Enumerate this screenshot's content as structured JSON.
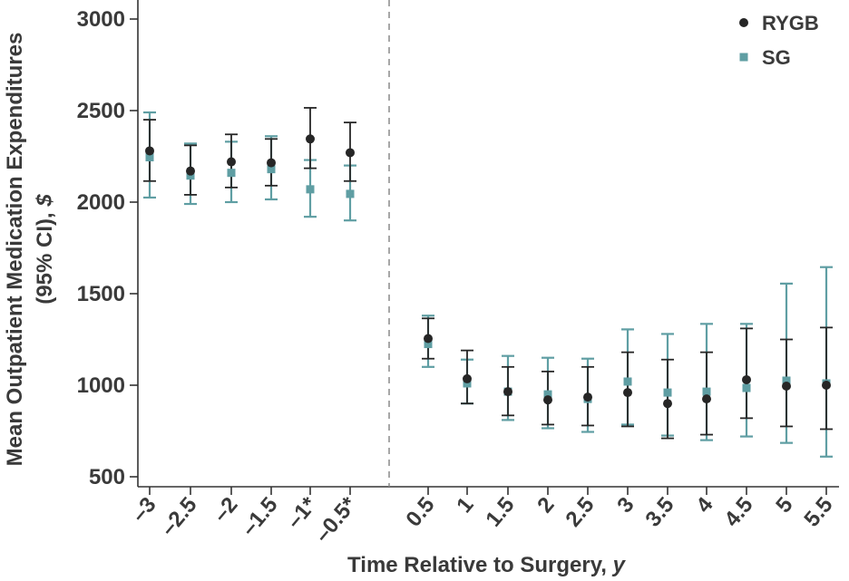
{
  "chart_data": {
    "type": "scatter",
    "xlabel_main": "Time Relative to Surgery, ",
    "xlabel_unit": "y",
    "ylabel_line1": "Mean Outpatient Medication Expenditures",
    "ylabel_line2_main": "(95% CI), ",
    "ylabel_line2_unit": "$",
    "ylim": [
      500,
      3000
    ],
    "yticks": [
      "500",
      "1000",
      "1500",
      "2000",
      "2500",
      "3000"
    ],
    "categories": [
      "–3",
      "–2.5",
      "–2",
      "–1.5",
      "–1*",
      "–0.5*",
      "0.5",
      "1",
      "1.5",
      "2",
      "2.5",
      "3",
      "3.5",
      "4",
      "4.5",
      "5",
      "5.5"
    ],
    "surgery_divider_between": [
      "–0.5*",
      "0.5"
    ],
    "grid": false,
    "legend_position": "top-right",
    "series": [
      {
        "name": "RYGB",
        "marker": "circle",
        "color": "#262626",
        "values": [
          2280,
          2170,
          2220,
          2215,
          2345,
          2270,
          1255,
          1035,
          965,
          920,
          935,
          960,
          900,
          925,
          1030,
          995,
          1000
        ],
        "lower": [
          2115,
          2040,
          2080,
          2090,
          2185,
          2115,
          1145,
          900,
          835,
          785,
          780,
          775,
          710,
          730,
          820,
          775,
          760
        ],
        "upper": [
          2450,
          2310,
          2370,
          2345,
          2515,
          2435,
          1365,
          1190,
          1100,
          1075,
          1100,
          1180,
          1140,
          1180,
          1310,
          1250,
          1315
        ]
      },
      {
        "name": "SG",
        "marker": "square",
        "color": "#5f9ea3",
        "values": [
          2245,
          2145,
          2160,
          2180,
          2070,
          2045,
          1225,
          1010,
          965,
          950,
          925,
          1020,
          960,
          965,
          985,
          1025,
          1010
        ],
        "lower": [
          2025,
          1990,
          2000,
          2015,
          1920,
          1900,
          1100,
          900,
          810,
          765,
          745,
          785,
          725,
          700,
          720,
          685,
          610
        ],
        "upper": [
          2490,
          2320,
          2330,
          2360,
          2230,
          2200,
          1380,
          1140,
          1160,
          1150,
          1145,
          1305,
          1280,
          1335,
          1335,
          1555,
          1645
        ]
      }
    ]
  }
}
